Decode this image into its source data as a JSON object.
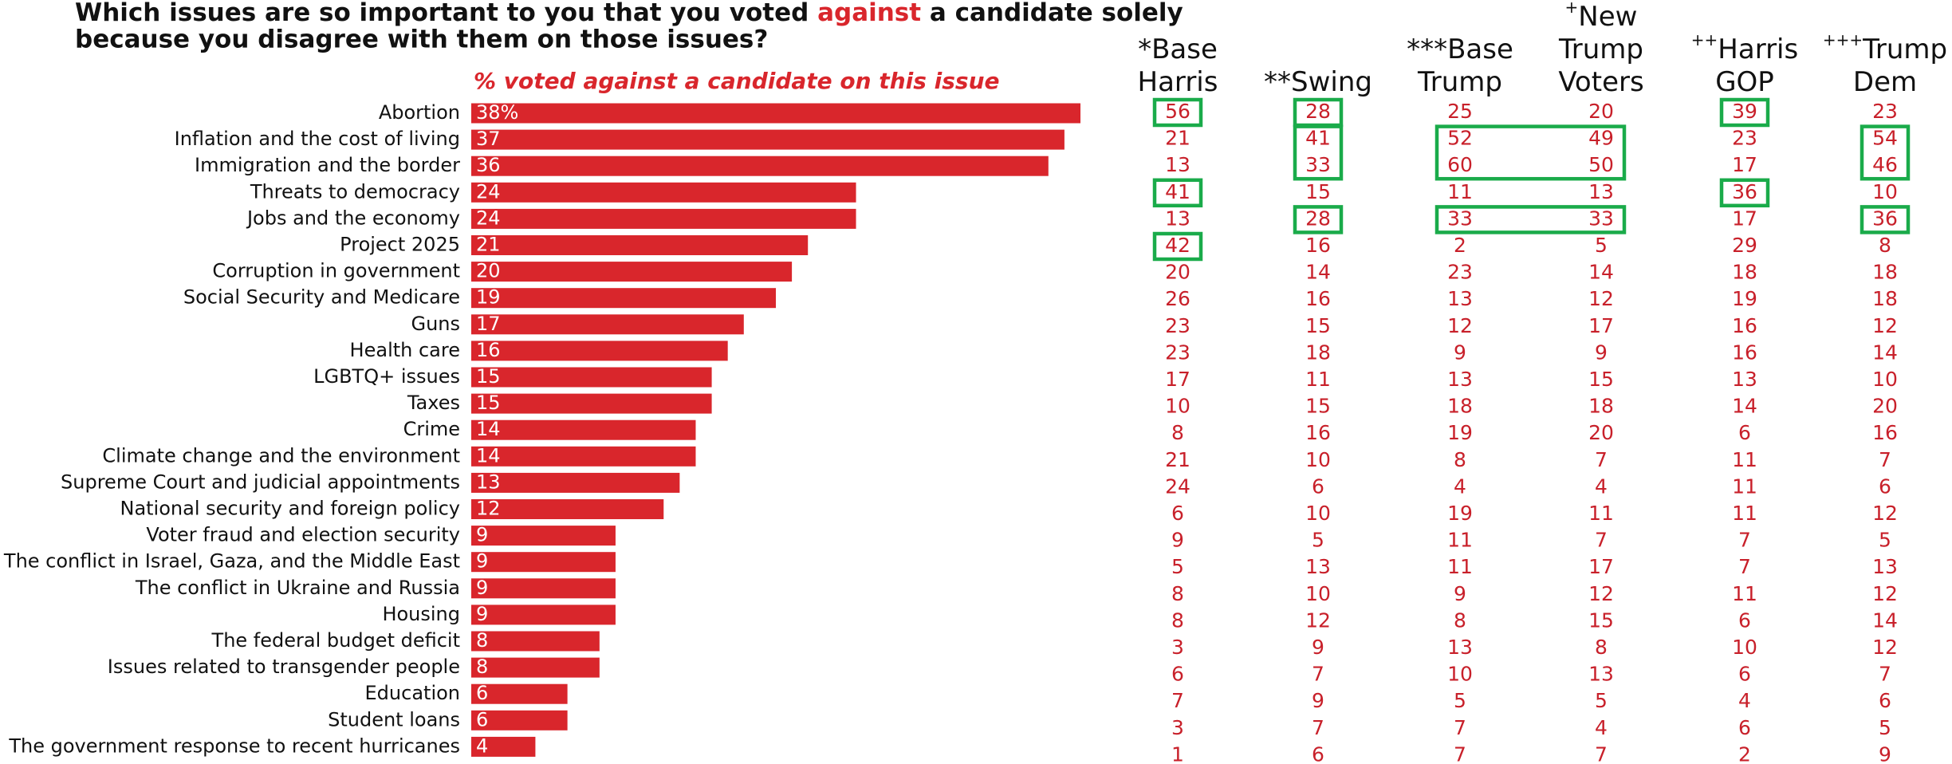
{
  "chart_data": {
    "type": "bar",
    "title": {
      "line1": [
        "Which issues are so important to you that you voted ",
        "against",
        " a candidate solely"
      ],
      "line2": "because you disagree with them on those issues?"
    },
    "subtitle": "% voted against a candidate on this issue",
    "categories": [
      "Abortion",
      "Inflation and the cost of living",
      "Immigration and the border",
      "Threats to democracy",
      "Jobs and the economy",
      "Project 2025",
      "Corruption in government",
      "Social Security and Medicare",
      "Guns",
      "Health care",
      "LGBTQ+ issues",
      "Taxes",
      "Crime",
      "Climate change and the environment",
      "Supreme Court and judicial appointments",
      "National security and foreign policy",
      "Voter fraud and election security",
      "The conflict in Israel, Gaza, and the Middle East",
      "The conflict in Ukraine and Russia",
      "Housing",
      "The federal budget deficit",
      "Issues related to transgender people",
      "Education",
      "Student loans",
      "The government response to recent hurricanes"
    ],
    "values": [
      38,
      37,
      36,
      24,
      24,
      21,
      20,
      19,
      17,
      16,
      15,
      15,
      14,
      14,
      13,
      12,
      9,
      9,
      9,
      9,
      8,
      8,
      6,
      6,
      4
    ],
    "value_labels": [
      "38%",
      "37",
      "36",
      "24",
      "24",
      "21",
      "20",
      "19",
      "17",
      "16",
      "15",
      "15",
      "14",
      "14",
      "13",
      "12",
      "9",
      "9",
      "9",
      "9",
      "8",
      "8",
      "6",
      "6",
      "4"
    ],
    "color": "#d9262c"
  },
  "table": {
    "color": "#c8202a",
    "box_color": "#1aab4a",
    "columns": [
      {
        "mark": "*",
        "mark_style": "inline",
        "lines": [
          "Base",
          "Harris"
        ],
        "values": [
          56,
          21,
          13,
          41,
          13,
          42,
          20,
          26,
          23,
          23,
          17,
          10,
          8,
          21,
          24,
          6,
          9,
          5,
          8,
          8,
          3,
          6,
          7,
          3,
          1
        ]
      },
      {
        "mark": "**",
        "mark_style": "inline",
        "lines": [
          "Swing"
        ],
        "values": [
          28,
          41,
          33,
          15,
          28,
          16,
          14,
          16,
          15,
          18,
          11,
          15,
          16,
          10,
          6,
          10,
          5,
          13,
          10,
          12,
          9,
          7,
          9,
          7,
          6
        ]
      },
      {
        "mark": "***",
        "mark_style": "inline",
        "lines": [
          "Base",
          "Trump"
        ],
        "values": [
          25,
          52,
          60,
          11,
          33,
          2,
          23,
          13,
          12,
          9,
          13,
          18,
          19,
          8,
          4,
          19,
          11,
          11,
          9,
          8,
          13,
          10,
          5,
          7,
          7
        ]
      },
      {
        "mark": "+",
        "mark_style": "superscript",
        "lines": [
          "New",
          "Trump",
          "Voters"
        ],
        "values": [
          20,
          49,
          50,
          13,
          33,
          5,
          14,
          12,
          17,
          9,
          15,
          18,
          20,
          7,
          4,
          11,
          7,
          17,
          12,
          15,
          8,
          13,
          5,
          4,
          7
        ]
      },
      {
        "mark": "++",
        "mark_style": "superscript",
        "lines": [
          "Harris",
          "GOP"
        ],
        "values": [
          39,
          23,
          17,
          36,
          17,
          29,
          18,
          19,
          16,
          16,
          13,
          14,
          6,
          11,
          11,
          11,
          7,
          7,
          11,
          6,
          10,
          6,
          4,
          6,
          2
        ]
      },
      {
        "mark": "+++",
        "mark_style": "superscript",
        "lines": [
          "Trump",
          "Dem"
        ],
        "values": [
          23,
          54,
          46,
          10,
          36,
          8,
          18,
          18,
          12,
          14,
          10,
          20,
          16,
          7,
          6,
          12,
          5,
          13,
          12,
          14,
          12,
          7,
          6,
          5,
          9
        ]
      }
    ],
    "boxes": [
      {
        "cols": [
          0,
          0
        ],
        "rows": [
          0,
          0
        ]
      },
      {
        "cols": [
          0,
          0
        ],
        "rows": [
          3,
          3
        ]
      },
      {
        "cols": [
          0,
          0
        ],
        "rows": [
          5,
          5
        ]
      },
      {
        "cols": [
          1,
          1
        ],
        "rows": [
          0,
          0
        ]
      },
      {
        "cols": [
          1,
          1
        ],
        "rows": [
          1,
          2
        ]
      },
      {
        "cols": [
          1,
          1
        ],
        "rows": [
          4,
          4
        ]
      },
      {
        "cols": [
          2,
          3
        ],
        "rows": [
          1,
          2
        ]
      },
      {
        "cols": [
          2,
          3
        ],
        "rows": [
          4,
          4
        ]
      },
      {
        "cols": [
          4,
          4
        ],
        "rows": [
          0,
          0
        ]
      },
      {
        "cols": [
          4,
          4
        ],
        "rows": [
          3,
          3
        ]
      },
      {
        "cols": [
          5,
          5
        ],
        "rows": [
          1,
          2
        ]
      },
      {
        "cols": [
          5,
          5
        ],
        "rows": [
          4,
          4
        ]
      }
    ]
  }
}
